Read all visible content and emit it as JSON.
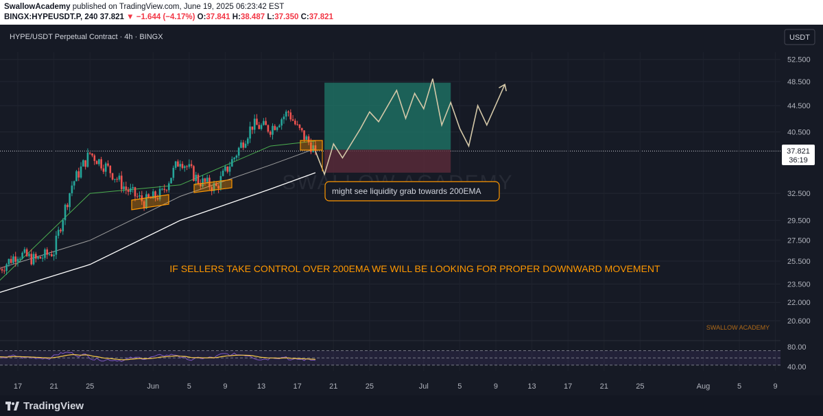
{
  "header": {
    "author": "SwallowAcademy",
    "published_text": "published on TradingView.com, June 19, 2025 06:23:42 EST",
    "symbol_interval": "BINGX:HYPEUSDT.P, 240",
    "last": "37.821",
    "change": "−1.644 (−4.17%)",
    "o_label": "O:",
    "o": "37.841",
    "h_label": "H:",
    "h": "38.487",
    "l_label": "L:",
    "l": "37.350",
    "c_label": "C:",
    "c": "37.821"
  },
  "chart_title": "HYPE/USDT Perpetual Contract · 4h · BINGX",
  "currency": "USDT",
  "price_label": {
    "value": "37.821",
    "timer": "36:19"
  },
  "watermark": "SWALLOW ACADEMY",
  "small_watermark": "SWALLOW ACADEMY",
  "annotations": {
    "callout": "might see liquidity grab towards 200EMA",
    "main_note": "IF SELLERS TAKE CONTROL OVER 200EMA WE WILL BE LOOKING FOR PROPER DOWNWARD MOVEMENT"
  },
  "footer": {
    "brand": "TradingView"
  },
  "colors": {
    "bg": "#161a25",
    "up": "#26a69a",
    "down": "#ef5350",
    "ema_short": "#ef5350",
    "ema_mid": "#4caf50",
    "ema_long": "#ffffff",
    "annotation": "#ff9800",
    "tp_zone": "#1f7a6a",
    "sl_zone": "#5b2a39",
    "rsi": "#7e57c2"
  },
  "chart_data": {
    "type": "candlestick",
    "y_axis": {
      "scale": "log",
      "ticks": [
        "52.500",
        "48.500",
        "44.500",
        "40.500",
        "32.500",
        "29.500",
        "27.500",
        "25.500",
        "23.500",
        "22.000",
        "20.600"
      ]
    },
    "rsi_axis": {
      "ticks": [
        "80.00",
        "40.00"
      ]
    },
    "x_axis": {
      "ticks": [
        "17",
        "21",
        "25",
        "Jun",
        "5",
        "9",
        "13",
        "17",
        "21",
        "25",
        "Jul",
        "5",
        "9",
        "13",
        "17",
        "21",
        "25",
        "Aug",
        "5",
        "9"
      ]
    },
    "anchors": [
      {
        "date": "May 15",
        "price": 24.8
      },
      {
        "date": "May 17",
        "price": 26.2
      },
      {
        "date": "May 19",
        "price": 25.6
      },
      {
        "date": "May 21",
        "price": 26.4
      },
      {
        "date": "May 23",
        "price": 33.5
      },
      {
        "date": "May 25",
        "price": 37.5
      },
      {
        "date": "May 27",
        "price": 35.5
      },
      {
        "date": "May 29",
        "price": 33.0
      },
      {
        "date": "May 31",
        "price": 31.5
      },
      {
        "date": "Jun 2",
        "price": 32.5
      },
      {
        "date": "Jun 4",
        "price": 36.8
      },
      {
        "date": "Jun 6",
        "price": 34.0
      },
      {
        "date": "Jun 8",
        "price": 33.2
      },
      {
        "date": "Jun 10",
        "price": 37.0
      },
      {
        "date": "Jun 12",
        "price": 41.5
      },
      {
        "date": "Jun 14",
        "price": 41.0
      },
      {
        "date": "Jun 16",
        "price": 43.5
      },
      {
        "date": "Jun 17",
        "price": 41.0
      },
      {
        "date": "Jun 19",
        "price": 37.82
      }
    ],
    "ema200": [
      {
        "date": "May 15",
        "price": 22.8
      },
      {
        "date": "May 25",
        "price": 25.2
      },
      {
        "date": "Jun 4",
        "price": 29.5
      },
      {
        "date": "Jun 14",
        "price": 33.0
      },
      {
        "date": "Jun 19",
        "price": 35.0
      }
    ],
    "ema_mid": [
      {
        "date": "May 15",
        "price": 23.8
      },
      {
        "date": "May 25",
        "price": 32.5
      },
      {
        "date": "Jun 4",
        "price": 33.5
      },
      {
        "date": "Jun 14",
        "price": 38.5
      },
      {
        "date": "Jun 19",
        "price": 39.2
      }
    ],
    "projection": [
      {
        "date": "Jun 19",
        "price": 37.8
      },
      {
        "date": "Jun 20",
        "price": 34.8
      },
      {
        "date": "Jun 21",
        "price": 38.8
      },
      {
        "date": "Jun 22",
        "price": 36.9
      },
      {
        "date": "Jun 24",
        "price": 41.0
      },
      {
        "date": "Jun 25",
        "price": 43.5
      },
      {
        "date": "Jun 26",
        "price": 42.0
      },
      {
        "date": "Jun 28",
        "price": 47.0
      },
      {
        "date": "Jun 29",
        "price": 42.5
      },
      {
        "date": "Jun 30",
        "price": 46.5
      },
      {
        "date": "Jul 1",
        "price": 44.0
      },
      {
        "date": "Jul 2",
        "price": 49.0
      },
      {
        "date": "Jul 3",
        "price": 41.5
      },
      {
        "date": "Jul 4",
        "price": 45.0
      },
      {
        "date": "Jul 5",
        "price": 41.0
      },
      {
        "date": "Jul 6",
        "price": 38.5
      },
      {
        "date": "Jul 7",
        "price": 44.5
      },
      {
        "date": "Jul 8",
        "price": 41.5
      },
      {
        "date": "Jul 10",
        "price": 48.0
      }
    ],
    "position": {
      "entry": 38.0,
      "take_profit": 48.3,
      "stop_loss": 35.0,
      "start": "Jun 20",
      "end": "Jul 4"
    }
  }
}
